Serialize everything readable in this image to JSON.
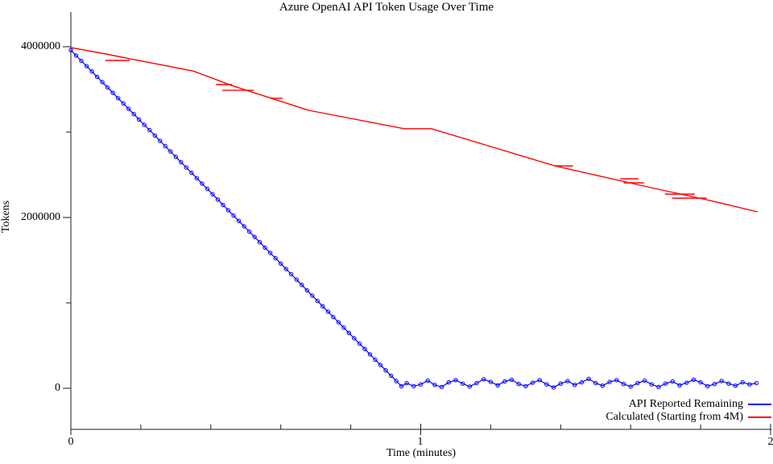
{
  "window": {
    "background": "#ffffff"
  },
  "chart_data": {
    "type": "line",
    "title": "Azure OpenAI API Token Usage Over Time",
    "xlabel": "Time (minutes)",
    "ylabel": "Tokens",
    "xlim": [
      0,
      2
    ],
    "ylim": [
      0,
      4400000
    ],
    "grid": false,
    "axis_color": "#1a1a1a",
    "legend_position": "bottom-right-outside",
    "x_ticks": {
      "major": [
        {
          "t": 0,
          "label": "0"
        },
        {
          "t": 1,
          "label": "1"
        },
        {
          "t": 2,
          "label": "2"
        }
      ],
      "minor_t": [
        0.2,
        0.4,
        0.6,
        0.8,
        1.2,
        1.4,
        1.6,
        1.8
      ]
    },
    "y_ticks": {
      "major": [
        {
          "v": 4000000,
          "label": "4000000"
        },
        {
          "v": 2000000,
          "label": "2000000"
        },
        {
          "v": 0,
          "label": "0"
        }
      ],
      "minor_v": [
        3000000,
        1000000
      ]
    },
    "series": [
      {
        "name": "API Reported Remaining",
        "color": "#0000ff",
        "marker": "open-circle",
        "marker_radius": 2.2,
        "line_width": 1.2,
        "segments": [
          {
            "t_start": 0,
            "t_step": 0.015,
            "values": [
              3960000,
              3897500,
              3835000,
              3772500,
              3710000,
              3647500,
              3585000,
              3522500,
              3460000,
              3397500,
              3335000,
              3272500,
              3210000,
              3147500,
              3085000,
              3022500,
              2960000,
              2897500,
              2835000,
              2772500,
              2710000,
              2647500,
              2585000,
              2522500,
              2460000,
              2397500,
              2335000,
              2272500,
              2210000,
              2147500,
              2085000,
              2022500,
              1960000,
              1897500,
              1835000,
              1772500,
              1710000,
              1647500,
              1585000,
              1522500,
              1460000,
              1397500,
              1335000,
              1272500,
              1210000,
              1147500,
              1085000,
              1022500,
              960000,
              897500,
              835000,
              772500,
              710000,
              647500,
              585000,
              522500,
              460000,
              397500,
              335000,
              272500,
              210000,
              147500,
              85000,
              22500
            ]
          },
          {
            "t_start": 0.96,
            "t_step": 0.02,
            "values": [
              60000,
              25000,
              45000,
              90000,
              40000,
              15000,
              70000,
              95000,
              55000,
              20000,
              60000,
              105000,
              75000,
              35000,
              80000,
              100000,
              50000,
              25000,
              65000,
              95000,
              45000,
              10000,
              55000,
              85000,
              40000,
              70000,
              110000,
              60000,
              30000,
              75000,
              95000,
              50000,
              20000,
              60000,
              90000,
              45000,
              15000,
              55000,
              80000,
              35000,
              65000,
              100000,
              70000,
              25000,
              50000,
              85000,
              55000,
              30000,
              70000,
              45000,
              60000
            ]
          }
        ]
      },
      {
        "name": "Calculated (Starting from 4M)",
        "color": "#ff0000",
        "marker": "none",
        "line_width": 1.4,
        "points": [
          [
            0,
            3990000
          ],
          [
            0.1,
            3915000
          ],
          [
            0.17,
            3858000
          ],
          [
            0.35,
            3715000
          ],
          [
            0.46,
            3545000
          ],
          [
            0.68,
            3255000
          ],
          [
            0.8,
            3160000
          ],
          [
            0.953,
            3040000
          ],
          [
            1.031,
            3040000
          ],
          [
            1.384,
            2604000
          ],
          [
            1.5,
            2496000
          ],
          [
            1.638,
            2368000
          ],
          [
            1.818,
            2208000
          ],
          [
            1.963,
            2066000
          ]
        ],
        "plateau_dashes": [
          [
            0.099,
            0.168,
            3840000
          ],
          [
            0.415,
            0.461,
            3557000
          ],
          [
            0.433,
            0.523,
            3490000
          ],
          [
            0.57,
            0.605,
            3396000
          ],
          [
            1.384,
            1.435,
            2604000
          ],
          [
            1.57,
            1.622,
            2453000
          ],
          [
            1.58,
            1.638,
            2406000
          ],
          [
            1.698,
            1.783,
            2274000
          ],
          [
            1.719,
            1.817,
            2226000
          ]
        ]
      }
    ]
  }
}
